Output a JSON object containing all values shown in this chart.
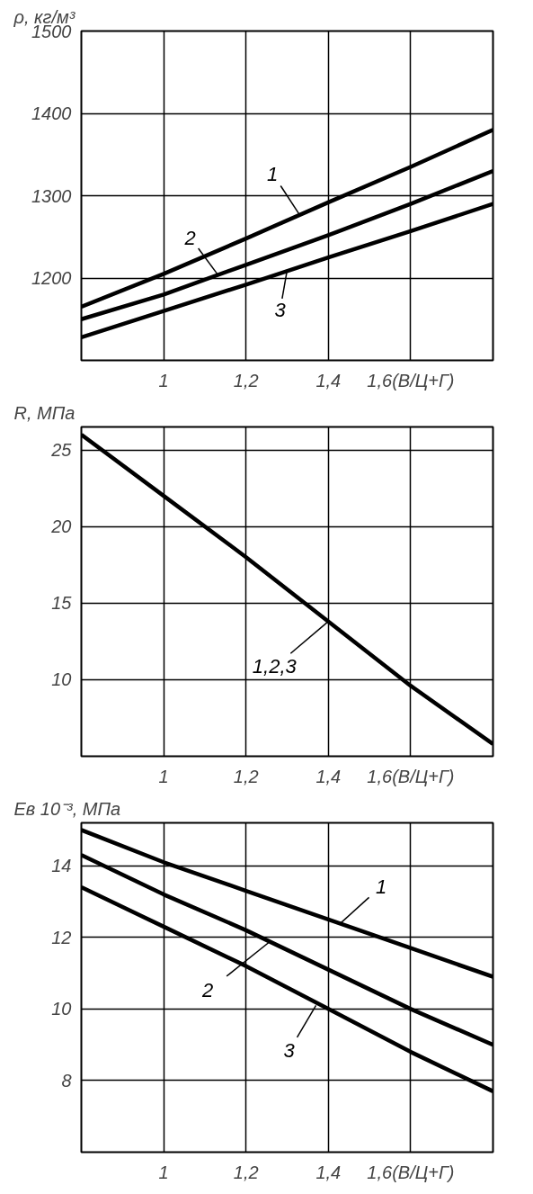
{
  "chart_data": [
    {
      "type": "line",
      "ylabel": "ρ, кг/м³",
      "x": [
        0.8,
        1.0,
        1.2,
        1.4,
        1.6,
        1.8
      ],
      "series": [
        {
          "color": "#000000",
          "values": [
            1165,
            1205,
            1248,
            1292,
            1335,
            1380
          ]
        },
        {
          "color": "#000000",
          "values": [
            1150,
            1180,
            1216,
            1252,
            1290,
            1330
          ]
        },
        {
          "color": "#000000",
          "values": [
            1128,
            1160,
            1192,
            1225,
            1257,
            1290
          ]
        }
      ],
      "xlim": [
        0.8,
        1.8
      ],
      "xticks": [
        1,
        {
          "value": 1.2,
          "label": "1,2"
        },
        {
          "value": 1.4,
          "label": "1,4"
        },
        {
          "value": 1.6,
          "label": "1,6(В/Ц+Г)"
        }
      ],
      "ylim": [
        1100,
        1500
      ],
      "yticks": [
        1200,
        1300,
        1400,
        1500
      ],
      "grid": true,
      "line_style": "solid",
      "annotations": [
        {
          "text": "1",
          "x": 1.33,
          "y": 1277
        },
        {
          "text": "2",
          "x": 1.13,
          "y": 1205
        },
        {
          "text": "3",
          "x": 1.3,
          "y": 1210
        }
      ]
    },
    {
      "type": "line",
      "ylabel": "R, МПа",
      "x": [
        0.8,
        1.0,
        1.2,
        1.4,
        1.6,
        1.8
      ],
      "series": [
        {
          "color": "#000000",
          "values": [
            26,
            22,
            18,
            13.8,
            9.6,
            5.8
          ]
        }
      ],
      "xlim": [
        0.8,
        1.8
      ],
      "xticks": [
        1,
        {
          "value": 1.2,
          "label": "1,2"
        },
        {
          "value": 1.4,
          "label": "1,4"
        },
        {
          "value": 1.6,
          "label": "1,6(В/Ц+Г)"
        }
      ],
      "ylim": [
        5,
        26.5
      ],
      "yticks": [
        10,
        15,
        20,
        25
      ],
      "grid": true,
      "line_style": "solid",
      "annotations": [
        {
          "text": "1,2,3",
          "x": 1.4,
          "y": 13.8
        }
      ]
    },
    {
      "type": "line",
      "ylabel": "Eв 10⁻³, МПа",
      "x": [
        0.8,
        1.0,
        1.2,
        1.4,
        1.6,
        1.8
      ],
      "series": [
        {
          "color": "#000000",
          "values": [
            15.0,
            14.1,
            13.3,
            12.5,
            11.7,
            10.9
          ]
        },
        {
          "color": "#000000",
          "values": [
            14.3,
            13.2,
            12.2,
            11.1,
            10.0,
            9.0
          ]
        },
        {
          "color": "#000000",
          "values": [
            13.4,
            12.3,
            11.2,
            10.0,
            8.8,
            7.7
          ]
        }
      ],
      "xlim": [
        0.8,
        1.8
      ],
      "xticks": [
        1,
        {
          "value": 1.2,
          "label": "1,2"
        },
        {
          "value": 1.4,
          "label": "1,4"
        },
        {
          "value": 1.6,
          "label": "1,6(В/Ц+Г)"
        }
      ],
      "ylim": [
        6,
        15.2
      ],
      "yticks": [
        8,
        10,
        12,
        14
      ],
      "grid": true,
      "line_style": "solid",
      "annotations": [
        {
          "text": "1",
          "x": 1.43,
          "y": 12.4
        },
        {
          "text": "2",
          "x": 1.26,
          "y": 11.9
        },
        {
          "text": "3",
          "x": 1.37,
          "y": 10.1
        }
      ]
    }
  ]
}
